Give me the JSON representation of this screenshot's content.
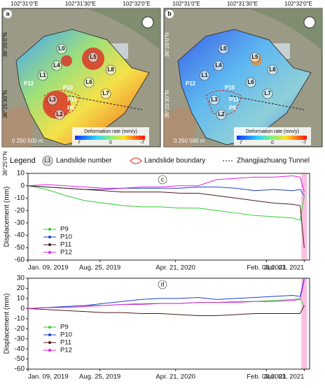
{
  "maps": [
    {
      "label": "a",
      "style": "warm"
    },
    {
      "label": "b",
      "style": "cool"
    }
  ],
  "map_xticks": [
    "102°31'0\"E",
    "102°31'30\"E",
    "102°32'0\"E"
  ],
  "map_yticks": [
    "36°26'0\"N",
    "36°25'30\"N",
    "36°25'0\"N"
  ],
  "landslides": [
    "L0",
    "L1",
    "L2",
    "L3",
    "L4",
    "L5",
    "L6",
    "L7",
    "L8",
    "P9",
    "P10",
    "P11",
    "P12"
  ],
  "colorbar": {
    "title": "Deformation rate (mm/y)",
    "ticks": [
      "7",
      "0",
      "-7"
    ]
  },
  "scalebar": "0  250 500 m",
  "legend": {
    "title": "Legend",
    "symbol": "L1",
    "items": [
      "Landslide number",
      "Landslide boundary",
      "Zhangjiazhuang Tunnel"
    ]
  },
  "chart_data": [
    {
      "type": "line",
      "label": "c",
      "ylabel": "Displacement (mm)",
      "x": [
        "2019-01-09",
        "2019-03-10",
        "2019-05-09",
        "2019-07-08",
        "2019-09-05",
        "2019-11-04",
        "2020-01-03",
        "2020-03-03",
        "2020-05-02",
        "2020-07-01",
        "2020-08-30",
        "2020-10-29",
        "2020-12-28",
        "2021-02-26",
        "2021-04-27",
        "2021-05-21",
        "2021-06-03"
      ],
      "xlim": [
        "2019-01-09",
        "2021-06-20"
      ],
      "xticks": [
        {
          "value": "2019-01-09",
          "label": "Jan. 09, 2019"
        },
        {
          "value": "2019-08-25",
          "label": "Aug. 25, 2019"
        },
        {
          "value": "2020-04-21",
          "label": "Apr. 21, 2020"
        },
        {
          "value": "2021-02-03",
          "label": "Feb. 03,2021"
        },
        {
          "value": "2021-06-03",
          "label": "Jun. 03, 2021"
        }
      ],
      "ylim": [
        -60,
        10
      ],
      "yticks": [
        10,
        0,
        -10,
        -20,
        -30,
        -40,
        -50,
        -60
      ],
      "highlight": [
        "2021-05-25",
        "2021-06-12"
      ],
      "series": [
        {
          "name": "P9",
          "color": "#33cc33",
          "values": [
            0,
            -3,
            -8,
            -12,
            -14,
            -16,
            -17,
            -17,
            -18,
            -18,
            -20,
            -22,
            -24,
            -25,
            -26,
            -28,
            -8
          ]
        },
        {
          "name": "P10",
          "color": "#1f3fd6",
          "values": [
            0,
            -1,
            -2,
            -3,
            -3,
            -2,
            -2,
            -2,
            -2,
            -1,
            -1,
            -2,
            -4,
            -3,
            -4,
            -3,
            -8
          ]
        },
        {
          "name": "P11",
          "color": "#4a1a1a",
          "values": [
            0,
            -1,
            -2,
            -3,
            -4,
            -5,
            -5,
            -5,
            -6,
            -6,
            -8,
            -10,
            -12,
            -14,
            -15,
            -16,
            -50
          ]
        },
        {
          "name": "P12",
          "color": "#e020e0",
          "values": [
            0,
            1,
            0,
            -1,
            -2,
            -2,
            -1,
            -1,
            0,
            0,
            5,
            6,
            7,
            7,
            8,
            7,
            -5
          ]
        }
      ]
    },
    {
      "type": "line",
      "label": "d",
      "ylabel": "Displacement (mm)",
      "x": [
        "2019-01-09",
        "2019-03-10",
        "2019-05-09",
        "2019-07-08",
        "2019-09-05",
        "2019-11-04",
        "2020-01-03",
        "2020-03-03",
        "2020-05-02",
        "2020-07-01",
        "2020-08-30",
        "2020-10-29",
        "2020-12-28",
        "2021-02-26",
        "2021-04-27",
        "2021-05-21",
        "2021-06-03"
      ],
      "xlim": [
        "2019-01-09",
        "2021-06-20"
      ],
      "xticks": [
        {
          "value": "2019-01-09",
          "label": "Jan. 09, 2019"
        },
        {
          "value": "2019-08-25",
          "label": "Aug. 25, 2019"
        },
        {
          "value": "2020-04-21",
          "label": "Apr. 21, 2020"
        },
        {
          "value": "2021-02-03",
          "label": "Feb. 03,2021"
        },
        {
          "value": "2021-06-03",
          "label": "Jun. 03, 2021"
        }
      ],
      "ylim": [
        -60,
        30
      ],
      "yticks": [
        30,
        20,
        10,
        0,
        -10,
        -20,
        -30,
        -40,
        -50,
        -60
      ],
      "highlight": [
        "2021-05-25",
        "2021-06-12"
      ],
      "series": [
        {
          "name": "P9",
          "color": "#33cc33",
          "values": [
            0,
            1,
            2,
            3,
            3,
            4,
            5,
            5,
            5,
            6,
            6,
            7,
            7,
            8,
            9,
            10,
            2
          ]
        },
        {
          "name": "P10",
          "color": "#1f3fd6",
          "values": [
            0,
            1,
            2,
            3,
            5,
            7,
            9,
            10,
            10,
            11,
            9,
            10,
            11,
            12,
            13,
            12,
            30
          ]
        },
        {
          "name": "P11",
          "color": "#4a1a1a",
          "values": [
            0,
            -1,
            -2,
            -3,
            -4,
            -4,
            -5,
            -5,
            -6,
            -7,
            -7,
            -6,
            -5,
            -5,
            -5,
            -5,
            3
          ]
        },
        {
          "name": "P12",
          "color": "#e020e0",
          "values": [
            0,
            1,
            1,
            2,
            3,
            4,
            4,
            5,
            5,
            6,
            6,
            6,
            7,
            7,
            8,
            9,
            28
          ]
        }
      ]
    }
  ]
}
